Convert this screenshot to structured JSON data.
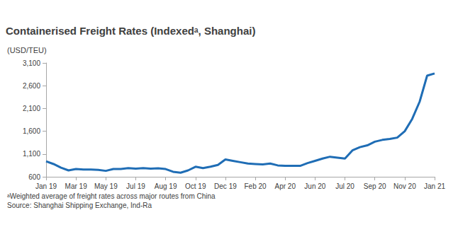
{
  "chart_data": {
    "type": "line",
    "title": "Containerised Freight Rates (Indexedᵃ, Shanghai)",
    "y_label": "(USD/TEU)",
    "notes": [
      "ᵃWeighted average of freight rates across major routes from China",
      "Source: Shanghai Shipping Exchange, Ind-Ra"
    ],
    "categories": [
      "Jan 19",
      null,
      null,
      null,
      "Mar 19",
      null,
      null,
      null,
      "May 19",
      null,
      null,
      null,
      "Jul 19",
      null,
      null,
      null,
      "Aug 19",
      null,
      null,
      null,
      "Oct 19",
      null,
      null,
      null,
      "Dec 19",
      null,
      null,
      null,
      "Feb 20",
      null,
      null,
      null,
      "Apr 20",
      null,
      null,
      null,
      "Jun 20",
      null,
      null,
      null,
      "Jul 20",
      null,
      null,
      null,
      "Sep 20",
      null,
      null,
      null,
      "Nov 20",
      null,
      null,
      null,
      "Jan 21"
    ],
    "values": [
      940,
      880,
      800,
      740,
      770,
      760,
      760,
      750,
      730,
      770,
      770,
      790,
      780,
      790,
      780,
      785,
      770,
      710,
      690,
      740,
      820,
      790,
      820,
      860,
      980,
      950,
      920,
      890,
      880,
      870,
      890,
      850,
      840,
      840,
      840,
      900,
      950,
      1000,
      1040,
      1020,
      1000,
      1180,
      1250,
      1290,
      1370,
      1410,
      1430,
      1460,
      1600,
      1870,
      2250,
      2820,
      2870
    ],
    "color": "#1f6db5",
    "ylim": [
      600,
      3100
    ],
    "yticks": [
      600,
      {
        "value": 1100,
        "label": "1,100"
      },
      {
        "value": 1600,
        "label": "1,600"
      },
      {
        "value": 2100,
        "label": "2,100"
      },
      {
        "value": 2600,
        "label": "2,600"
      },
      {
        "value": 3100,
        "label": "3,100"
      }
    ],
    "grid": false
  }
}
